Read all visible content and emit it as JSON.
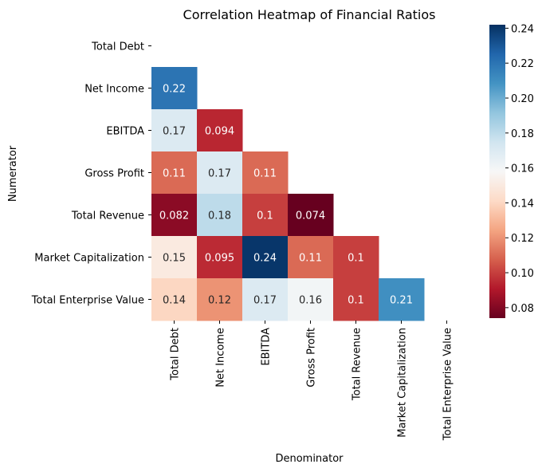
{
  "chart_data": {
    "type": "heatmap",
    "title": "Correlation Heatmap of Financial Ratios",
    "xlabel": "Denominator",
    "ylabel": "Numerator",
    "x_categories": [
      "Total Debt",
      "Net Income",
      "EBITDA",
      "Gross Profit",
      "Total Revenue",
      "Market Capitalization",
      "Total Enterprise Value"
    ],
    "y_categories": [
      "Total Debt",
      "Net Income",
      "EBITDA",
      "Gross Profit",
      "Total Revenue",
      "Market Capitalization",
      "Total Enterprise Value"
    ],
    "mask": "upper triangle including diagonal",
    "values": [
      [
        null,
        null,
        null,
        null,
        null,
        null,
        null
      ],
      [
        0.22,
        null,
        null,
        null,
        null,
        null,
        null
      ],
      [
        0.17,
        0.094,
        null,
        null,
        null,
        null,
        null
      ],
      [
        0.11,
        0.17,
        0.11,
        null,
        null,
        null,
        null
      ],
      [
        0.082,
        0.18,
        0.1,
        0.074,
        null,
        null,
        null
      ],
      [
        0.15,
        0.095,
        0.24,
        0.11,
        0.1,
        null,
        null
      ],
      [
        0.14,
        0.12,
        0.17,
        0.16,
        0.1,
        0.21,
        null
      ]
    ],
    "colormap": "RdBu",
    "colorbar": {
      "range": [
        0.074,
        0.242
      ],
      "ticks": [
        "0.08",
        "0.10",
        "0.12",
        "0.14",
        "0.16",
        "0.18",
        "0.20",
        "0.22",
        "0.24"
      ]
    },
    "annotate": true
  }
}
